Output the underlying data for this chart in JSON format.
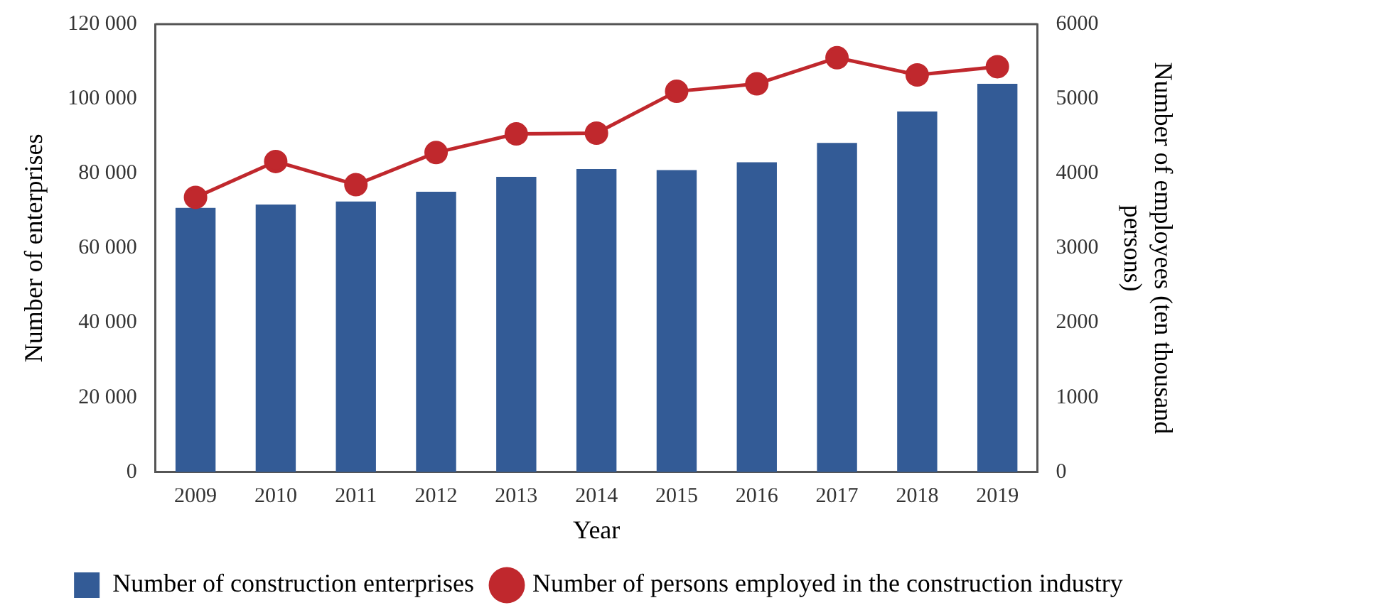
{
  "chart_data": {
    "type": "bar",
    "xlabel": "Year",
    "ylabel": "Number of enterprises",
    "y2label": "Number of employees (ten thousand persons)",
    "categories": [
      "2009",
      "2010",
      "2011",
      "2012",
      "2013",
      "2014",
      "2015",
      "2016",
      "2017",
      "2018",
      "2019"
    ],
    "series": [
      {
        "name": "Number of construction enterprises",
        "color": "#335b96",
        "values": [
          70800,
          71700,
          72500,
          75100,
          79100,
          81200,
          80900,
          83000,
          88200,
          96600,
          104000
        ]
      },
      {
        "name": "Number of persons employed in the construction industry",
        "type": "line",
        "axis": "y2",
        "color": "#c0282d",
        "values": [
          3680,
          4160,
          3850,
          4280,
          4530,
          4540,
          5100,
          5200,
          5550,
          5320,
          5430
        ]
      }
    ],
    "ylim": [
      0,
      120000
    ],
    "yticks": [
      0,
      {
        "value": 20000,
        "label": "20 000"
      },
      {
        "value": 40000,
        "label": "40 000"
      },
      {
        "value": 60000,
        "label": "60 000"
      },
      {
        "value": 80000,
        "label": "80 000"
      },
      {
        "value": 100000,
        "label": "100 000"
      },
      {
        "value": 120000,
        "label": "120 000"
      }
    ],
    "y2lim": [
      0,
      6000
    ],
    "y2ticks": [
      0,
      1000,
      2000,
      3000,
      4000,
      5000,
      6000
    ],
    "grid": false,
    "legend": "bottom",
    "marker": "circle"
  }
}
